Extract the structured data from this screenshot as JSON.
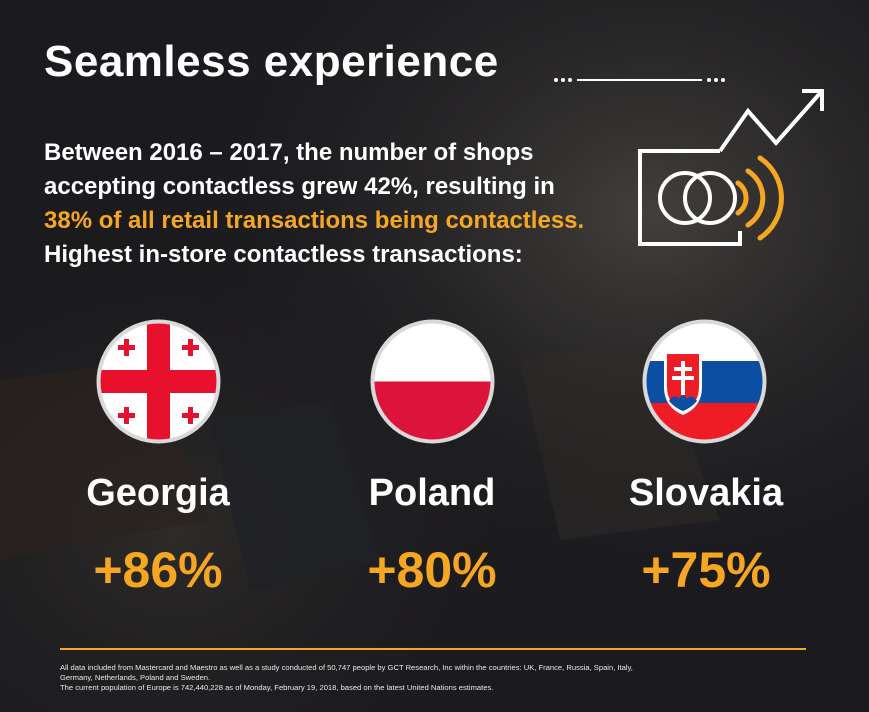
{
  "header": {
    "title": "Seamless experience"
  },
  "intro": {
    "line1": "Between 2016 – 2017, the number of shops",
    "line2": "accepting contactless grew 42%, resulting in",
    "line3_highlight": "38% of all retail transactions being contactless.",
    "line4": "Highest in-store contactless transactions:"
  },
  "icon": {
    "name": "contactless-card-growth-icon"
  },
  "countries": [
    {
      "name": "Georgia",
      "change": "+86%",
      "flag": "georgia-flag-icon"
    },
    {
      "name": "Poland",
      "change": "+80%",
      "flag": "poland-flag-icon"
    },
    {
      "name": "Slovakia",
      "change": "+75%",
      "flag": "slovakia-flag-icon"
    }
  ],
  "footnote": {
    "line1": "All data included from Mastercard and Maestro as well as a study conducted of 50,747 people by GCT Research, Inc within the countries: UK, France, Russia, Spain, Italy,",
    "line2": "Germany, Netherlands, Poland and Sweden.",
    "line3": "The current population of Europe is 742,440,228 as of Monday, February 19, 2018, based on the latest United Nations estimates."
  },
  "colors": {
    "accent": "#f5a623",
    "text": "#ffffff",
    "georgia_red": "#e8112d",
    "poland_red": "#dc143c",
    "slovakia_blue": "#0b4ea2",
    "slovakia_red": "#ee1c25"
  }
}
